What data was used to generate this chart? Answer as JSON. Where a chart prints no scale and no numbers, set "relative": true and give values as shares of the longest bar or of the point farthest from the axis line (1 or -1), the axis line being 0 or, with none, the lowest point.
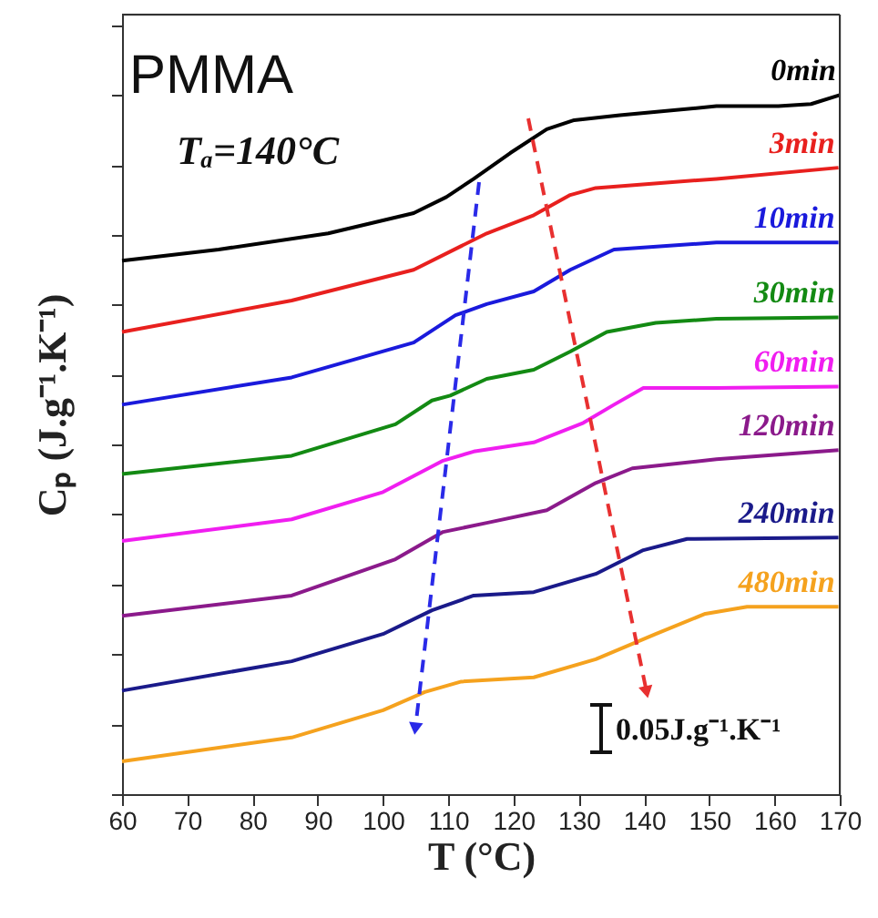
{
  "chart_data": {
    "type": "line",
    "relative": true,
    "xlabel": "T (°C)",
    "ylabel": "Cₚ (J.g⁻¹.K⁻¹)",
    "xlim": [
      60,
      170
    ],
    "xticks": [
      60,
      70,
      80,
      90,
      100,
      110,
      120,
      130,
      140,
      150,
      160,
      170
    ],
    "tick_labels": "x",
    "grid": false,
    "marker": "none",
    "line_style": "solid",
    "annotations": [
      "PMMA",
      "Tₐ=140°C",
      "0.05J.g⁻¹.K⁻¹"
    ],
    "series": [
      {
        "name": "0min",
        "color": "#000000",
        "x": [
          60,
          74.8,
          91.6,
          104.7,
          109.7,
          113.9,
          119.5,
          125.1,
          129.3,
          136.3,
          151.1,
          160.6,
          165.6,
          170
        ],
        "values": [
          0.763,
          0.779,
          0.802,
          0.831,
          0.854,
          0.88,
          0.917,
          0.951,
          0.964,
          0.971,
          0.984,
          0.984,
          0.987,
          1.0
        ]
      },
      {
        "name": "3min",
        "color": "#e8201e",
        "x": [
          60,
          86,
          104.7,
          112,
          115.9,
          123.1,
          128.7,
          132.6,
          151.1,
          169.8
        ],
        "values": [
          0.661,
          0.706,
          0.75,
          0.784,
          0.802,
          0.828,
          0.857,
          0.867,
          0.88,
          0.896
        ]
      },
      {
        "name": "10min",
        "color": "#1a1adc",
        "x": [
          60,
          86,
          104.7,
          111.1,
          115.9,
          123.1,
          128.7,
          135.4,
          151.1,
          169.8
        ],
        "values": [
          0.557,
          0.596,
          0.646,
          0.685,
          0.701,
          0.719,
          0.75,
          0.779,
          0.789,
          0.789
        ]
      },
      {
        "name": "30min",
        "color": "#138a13",
        "x": [
          60,
          86,
          101.9,
          107.5,
          110.3,
          115.9,
          123.1,
          128.7,
          134.3,
          141.8,
          151.1,
          169.8
        ],
        "values": [
          0.458,
          0.484,
          0.529,
          0.563,
          0.57,
          0.594,
          0.607,
          0.633,
          0.661,
          0.674,
          0.68,
          0.682
        ]
      },
      {
        "name": "60min",
        "color": "#f01ef0",
        "x": [
          60,
          86,
          100,
          109.2,
          113.9,
          123.1,
          130.7,
          135.4,
          139.9,
          151.1,
          169.8
        ],
        "values": [
          0.362,
          0.393,
          0.432,
          0.477,
          0.49,
          0.503,
          0.531,
          0.557,
          0.581,
          0.581,
          0.583
        ]
      },
      {
        "name": "120min",
        "color": "#8b1a8b",
        "x": [
          60,
          86,
          101.9,
          109.2,
          115.9,
          125.1,
          132.6,
          138.2,
          151.1,
          169.8
        ],
        "values": [
          0.255,
          0.284,
          0.336,
          0.375,
          0.388,
          0.406,
          0.445,
          0.466,
          0.479,
          0.492
        ]
      },
      {
        "name": "240min",
        "color": "#1a1a8a",
        "x": [
          60,
          86,
          100,
          107.5,
          113.9,
          123.1,
          132.6,
          139.9,
          146.6,
          169.8
        ],
        "values": [
          0.148,
          0.19,
          0.229,
          0.263,
          0.284,
          0.289,
          0.315,
          0.349,
          0.365,
          0.367
        ]
      },
      {
        "name": "480min",
        "color": "#f5a21e",
        "x": [
          60,
          86,
          100,
          106.4,
          112,
          123.1,
          132.6,
          141.8,
          149.4,
          155.8,
          169.8
        ],
        "values": [
          0.047,
          0.081,
          0.12,
          0.146,
          0.161,
          0.167,
          0.193,
          0.229,
          0.258,
          0.268,
          0.268
        ]
      }
    ]
  }
}
